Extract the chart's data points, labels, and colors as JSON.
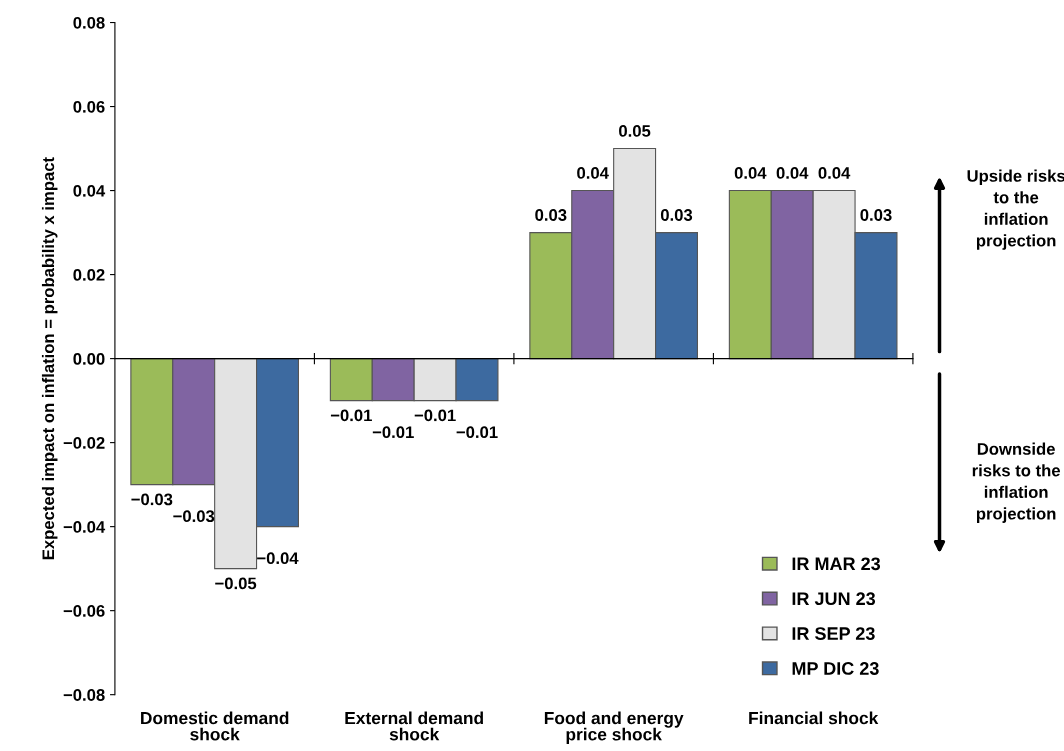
{
  "chart_data": {
    "type": "bar",
    "ylabel": "Expected impact on inflation = probability x impact",
    "categories": [
      "Domestic demand shock",
      "External demand shock",
      "Food and energy price shock",
      "Financial shock"
    ],
    "series": [
      {
        "name": "IR MAR 23",
        "color": "#9bbb59",
        "values": [
          -0.03,
          -0.01,
          0.03,
          0.04
        ],
        "value_labels": [
          "−0.03",
          "−0.01",
          "0.03",
          "0.04"
        ]
      },
      {
        "name": "IR JUN 23",
        "color": "#8064a2",
        "values": [
          -0.03,
          -0.01,
          0.04,
          0.04
        ],
        "value_labels": [
          "−0.03",
          "−0.01",
          "0.04",
          "0.04"
        ]
      },
      {
        "name": "IR SEP 23",
        "color": "#e3e3e3",
        "values": [
          -0.05,
          -0.01,
          0.05,
          0.04
        ],
        "value_labels": [
          "−0.05",
          "−0.01",
          "0.05",
          "0.04"
        ]
      },
      {
        "name": "MP DIC 23",
        "color": "#3d6aa0",
        "values": [
          -0.04,
          -0.01,
          0.03,
          0.03
        ],
        "value_labels": [
          "−0.04",
          "−0.01",
          "0.03",
          "0.03"
        ]
      }
    ],
    "ylim": [
      -0.08,
      0.08
    ],
    "yticks": [
      {
        "value": -0.08,
        "label": "−0.08"
      },
      {
        "value": -0.06,
        "label": "−0.06"
      },
      {
        "value": -0.04,
        "label": "−0.04"
      },
      {
        "value": -0.02,
        "label": "−0.02"
      },
      {
        "value": 0,
        "label": "0.00"
      },
      {
        "value": 0.02,
        "label": "0.02"
      },
      {
        "value": 0.04,
        "label": "0.04"
      },
      {
        "value": 0.06,
        "label": "0.06"
      },
      {
        "value": 0.08,
        "label": "0.08"
      }
    ],
    "annotations": [
      "Upside risks\nto the\ninflation\nprojection",
      "Downside\nrisks to the\ninflation\nprojection"
    ],
    "legend": "bottom right"
  }
}
